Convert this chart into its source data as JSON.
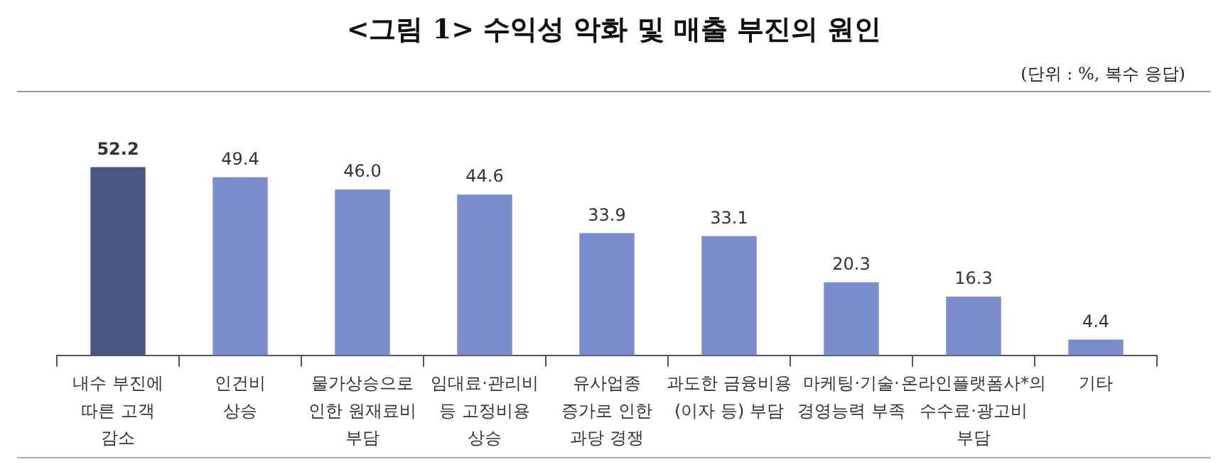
{
  "chart_data": {
    "type": "bar",
    "title": "<그림 1> 수익성 악화 및 매출 부진의 원인",
    "subtitle": "(단위 : %, 복수 응답)",
    "categories": [
      "내수 부진에\n따른 고객\n감소",
      "인건비\n상승",
      "물가상승으로\n인한 원재료비\n부담",
      "임대료·관리비\n등 고정비용\n상승",
      "유사업종\n증가로 인한\n과당 경쟁",
      "과도한 금융비용\n(이자 등) 부담",
      "마케팅·기술·\n경영능력 부족",
      "온라인플랫폼사*의\n수수료·광고비\n부담",
      "기타"
    ],
    "values": [
      52.2,
      49.4,
      46.0,
      44.6,
      33.9,
      33.1,
      20.3,
      16.3,
      4.4
    ],
    "colors": [
      "#4a5682",
      "#7a8ccb",
      "#7a8ccb",
      "#7a8ccb",
      "#7a8ccb",
      "#7a8ccb",
      "#7a8ccb",
      "#7a8ccb",
      "#7a8ccb"
    ],
    "value_labels": [
      "52.2",
      "49.4",
      "46.0",
      "44.6",
      "33.9",
      "33.1",
      "20.3",
      "16.3",
      "4.4"
    ],
    "grid": false,
    "legend": false
  }
}
